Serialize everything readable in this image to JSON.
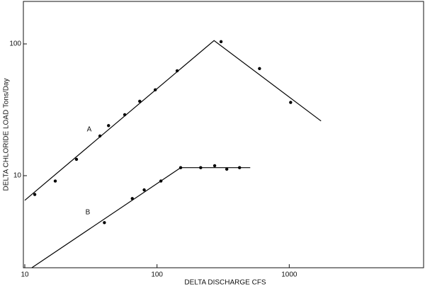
{
  "chart_data": {
    "type": "scatter",
    "x_label": "DELTA DISCHARGE CFS",
    "y_label": "DELTA CHLORIDE LOAD Tons/Day",
    "log_x": true,
    "log_y": true,
    "xlim": [
      10,
      10000
    ],
    "ylim": [
      2,
      200
    ],
    "xticks": [
      10,
      100,
      1000
    ],
    "yticks": [
      10,
      100
    ],
    "series": [
      {
        "name": "A",
        "color": "#000000",
        "x": [
          11.9,
          17,
          24.6,
          37,
          43,
          57,
          74,
          97,
          142,
          305,
          596,
          1025
        ],
        "values": [
          7.2,
          9.1,
          13.3,
          20,
          24,
          29,
          36.7,
          44.8,
          62.5,
          104,
          65,
          36
        ]
      },
      {
        "name": "B",
        "color": "#000000",
        "x": [
          40,
          65,
          80,
          107,
          151,
          214,
          273,
          337,
          421
        ],
        "values": [
          4.4,
          6.7,
          7.8,
          9.1,
          11.5,
          11.5,
          11.9,
          11.2,
          11.5
        ]
      }
    ],
    "fit_lines": [
      {
        "color": "#000000",
        "x": [
          10,
          270,
          1740
        ],
        "values": [
          6.5,
          106,
          26
        ]
      },
      {
        "color": "#000000",
        "x": [
          11.3,
          151,
          507
        ],
        "values": [
          2,
          11.5,
          11.5
        ]
      }
    ]
  }
}
